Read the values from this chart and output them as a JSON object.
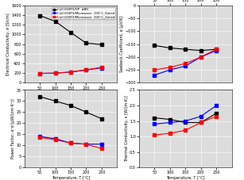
{
  "temp": [
    50,
    100,
    150,
    200,
    250
  ],
  "series": [
    {
      "label": "Cu0.01BTS/HP  ≤BD",
      "color": "black",
      "marker": "s",
      "elec_cond": [
        1390,
        1270,
        1040,
        820,
        790
      ],
      "seebeck": [
        -155,
        -165,
        -170,
        -175,
        -170
      ],
      "power_factor": [
        32,
        30,
        28,
        25,
        22
      ],
      "thermal_cond": [
        1.6,
        1.55,
        1.45,
        1.45,
        1.75
      ]
    },
    {
      "label": "Cu0.01BTS/Microwave  350°C_Sinied",
      "color": "blue",
      "marker": "s",
      "elec_cond": [
        195,
        200,
        220,
        265,
        310
      ],
      "seebeck": [
        -270,
        -250,
        -235,
        -200,
        -175
      ],
      "power_factor": [
        14,
        13,
        11,
        10.5,
        10.5
      ],
      "thermal_cond": [
        1.4,
        1.45,
        1.5,
        1.65,
        2.0
      ]
    },
    {
      "label": "Cu0.01BTS/Microwave  300°C_Sinied",
      "color": "red",
      "marker": "s",
      "elec_cond": [
        195,
        200,
        225,
        270,
        320
      ],
      "seebeck": [
        -250,
        -240,
        -225,
        -200,
        -170
      ],
      "power_factor": [
        13.5,
        12.5,
        11,
        10.5,
        8.5
      ],
      "thermal_cond": [
        1.05,
        1.1,
        1.2,
        1.45,
        1.65
      ]
    }
  ],
  "xlim": [
    0,
    300
  ],
  "xticks": [
    50,
    100,
    150,
    200,
    250
  ],
  "elec_ylim": [
    0,
    1600
  ],
  "elec_yticks": [
    0,
    200,
    400,
    600,
    800,
    1000,
    1200,
    1400,
    1600
  ],
  "seebeck_ylim": [
    -300,
    0
  ],
  "seebeck_yticks": [
    0,
    -50,
    -100,
    -150,
    -200,
    -250,
    -300
  ],
  "pf_ylim": [
    0,
    35
  ],
  "pf_yticks": [
    0,
    5,
    10,
    15,
    20,
    25,
    30,
    35
  ],
  "tc_ylim": [
    0,
    2.5
  ],
  "tc_yticks": [
    0,
    0.5,
    1.0,
    1.5,
    2.0,
    2.5
  ],
  "xlabel": "Temperature, T [°C]",
  "elec_ylabel": "Electrical Conductivity, σ [S/cm]",
  "seebeck_ylabel": "Seebeck Coefficient, α [μV/K]",
  "pf_ylabel": "Power Factor, α²σ [μW/(cm·K²)]",
  "tc_ylabel": "Thermal Conductivity, κ [W/(m·K)]",
  "ax_bg": "#dcdcdc",
  "fig_bg": "white",
  "grid_color": "white",
  "marker_size": 2.5,
  "linewidth": 0.8,
  "tick_fontsize": 3.5,
  "label_fontsize": 3.5,
  "legend_fontsize": 2.8
}
